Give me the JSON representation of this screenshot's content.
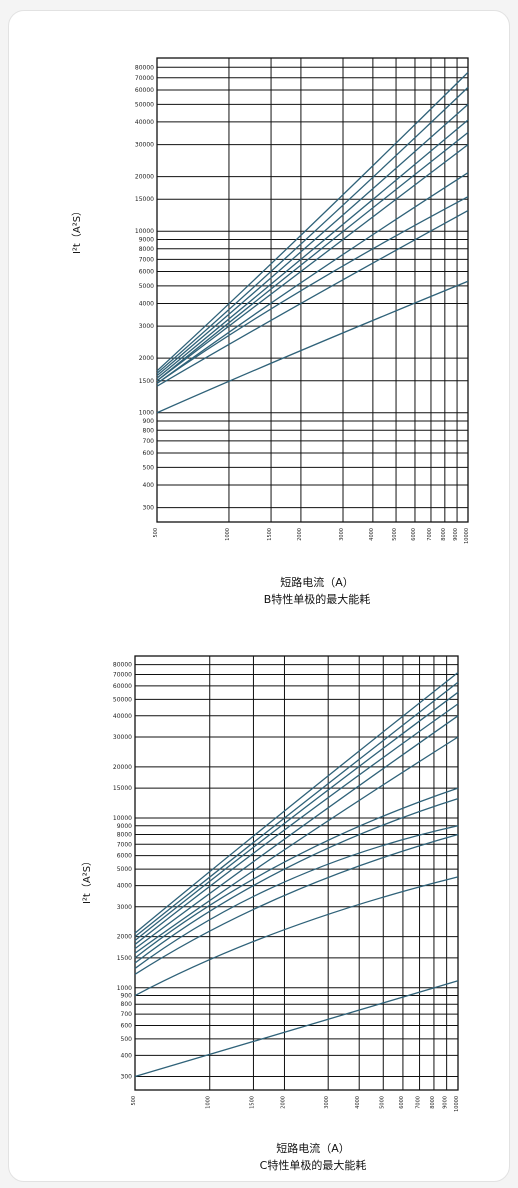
{
  "charts": [
    {
      "ylabel": "I²t（A²S）",
      "xlabel": "短路电流（A）",
      "title": "B特性单极的最大能耗"
    },
    {
      "ylabel": "I²t（A²S）",
      "xlabel": "短路电流（A）",
      "title": "C特性单极的最大能耗"
    }
  ],
  "chart_data": [
    {
      "type": "line",
      "title": "B特性单极的最大能耗",
      "xlabel": "短路电流（A）",
      "ylabel": "I²t（A²S）",
      "xscale": "log",
      "yscale": "log",
      "xlim": [
        500,
        10000
      ],
      "ylim": [
        250,
        90000
      ],
      "xticks": [
        500,
        1000,
        1500,
        2000,
        3000,
        4000,
        5000,
        6000,
        7000,
        8000,
        9000,
        10000
      ],
      "xtick_labels": [
        "500",
        "1000",
        "1500",
        "2000",
        "3000",
        "4000",
        "5000",
        "6000",
        "7000",
        "8000",
        "9000",
        "10000"
      ],
      "yticks": [
        300,
        400,
        500,
        600,
        700,
        800,
        900,
        1000,
        1500,
        2000,
        3000,
        4000,
        5000,
        6000,
        7000,
        8000,
        9000,
        10000,
        15000,
        20000,
        30000,
        40000,
        50000,
        60000,
        70000,
        80000
      ],
      "ytick_labels": [
        "300",
        "400",
        "500",
        "600",
        "700",
        "800",
        "900",
        "1000",
        "1500",
        "2000",
        "3000",
        "4000",
        "5000",
        "6000",
        "7000",
        "8000",
        "9000",
        "10000",
        "15000",
        "20000",
        "30000",
        "40000",
        "50000",
        "60000",
        "70000",
        "80000"
      ],
      "grid": true,
      "series_color": "#2f6279",
      "series": [
        {
          "x": [
            500,
            2000,
            10000
          ],
          "y": [
            1000,
            2200,
            5300
          ]
        },
        {
          "x": [
            500,
            2000,
            10000
          ],
          "y": [
            1400,
            4000,
            13000
          ]
        },
        {
          "x": [
            500,
            2000,
            10000
          ],
          "y": [
            1450,
            4700,
            15500
          ]
        },
        {
          "x": [
            500,
            2000,
            10000
          ],
          "y": [
            1450,
            5200,
            21000
          ]
        },
        {
          "x": [
            500,
            2000,
            10000
          ],
          "y": [
            1500,
            6000,
            30000
          ]
        },
        {
          "x": [
            500,
            2000,
            10000
          ],
          "y": [
            1500,
            6500,
            35000
          ]
        },
        {
          "x": [
            500,
            2000,
            10000
          ],
          "y": [
            1550,
            7000,
            41000
          ]
        },
        {
          "x": [
            500,
            2000,
            10000
          ],
          "y": [
            1600,
            7700,
            50000
          ]
        },
        {
          "x": [
            500,
            2000,
            10000
          ],
          "y": [
            1650,
            8500,
            62000
          ]
        },
        {
          "x": [
            500,
            2000,
            10000
          ],
          "y": [
            1700,
            9500,
            75000
          ]
        }
      ]
    },
    {
      "type": "line",
      "title": "C特性单极的最大能耗",
      "xlabel": "短路电流（A）",
      "ylabel": "I²t（A²S）",
      "xscale": "log",
      "yscale": "log",
      "xlim": [
        500,
        10000
      ],
      "ylim": [
        250,
        90000
      ],
      "xticks": [
        500,
        1000,
        1500,
        2000,
        3000,
        4000,
        5000,
        6000,
        7000,
        8000,
        9000,
        10000
      ],
      "xtick_labels": [
        "500",
        "1000",
        "1500",
        "2000",
        "3000",
        "4000",
        "5000",
        "6000",
        "7000",
        "8000",
        "9000",
        "10000"
      ],
      "yticks": [
        300,
        400,
        500,
        600,
        700,
        800,
        900,
        1000,
        1500,
        2000,
        3000,
        4000,
        5000,
        6000,
        7000,
        8000,
        9000,
        10000,
        15000,
        20000,
        30000,
        40000,
        50000,
        60000,
        70000,
        80000
      ],
      "ytick_labels": [
        "300",
        "400",
        "500",
        "600",
        "700",
        "800",
        "900",
        "1000",
        "1500",
        "2000",
        "3000",
        "4000",
        "5000",
        "6000",
        "7000",
        "8000",
        "9000",
        "10000",
        "15000",
        "20000",
        "30000",
        "40000",
        "50000",
        "60000",
        "70000",
        "80000"
      ],
      "grid": true,
      "series_color": "#2f6279",
      "series": [
        {
          "x": [
            500,
            2000,
            10000
          ],
          "y": [
            300,
            550,
            1100
          ]
        },
        {
          "x": [
            500,
            2000,
            10000
          ],
          "y": [
            900,
            2200,
            4500
          ]
        },
        {
          "x": [
            500,
            2000,
            10000
          ],
          "y": [
            1200,
            3500,
            8000
          ]
        },
        {
          "x": [
            500,
            2000,
            10000
          ],
          "y": [
            1300,
            4200,
            9000
          ]
        },
        {
          "x": [
            500,
            2000,
            10000
          ],
          "y": [
            1400,
            5000,
            13000
          ]
        },
        {
          "x": [
            500,
            2000,
            10000
          ],
          "y": [
            1500,
            5500,
            15000
          ]
        },
        {
          "x": [
            500,
            2000,
            10000
          ],
          "y": [
            1600,
            6500,
            30000
          ]
        },
        {
          "x": [
            500,
            2000,
            10000
          ],
          "y": [
            1700,
            7500,
            40000
          ]
        },
        {
          "x": [
            500,
            2000,
            10000
          ],
          "y": [
            1800,
            8500,
            47000
          ]
        },
        {
          "x": [
            500,
            2000,
            10000
          ],
          "y": [
            1900,
            9300,
            55000
          ]
        },
        {
          "x": [
            500,
            2000,
            10000
          ],
          "y": [
            2000,
            10000,
            63000
          ]
        },
        {
          "x": [
            500,
            2000,
            10000
          ],
          "y": [
            2100,
            11000,
            72000
          ]
        }
      ]
    }
  ]
}
